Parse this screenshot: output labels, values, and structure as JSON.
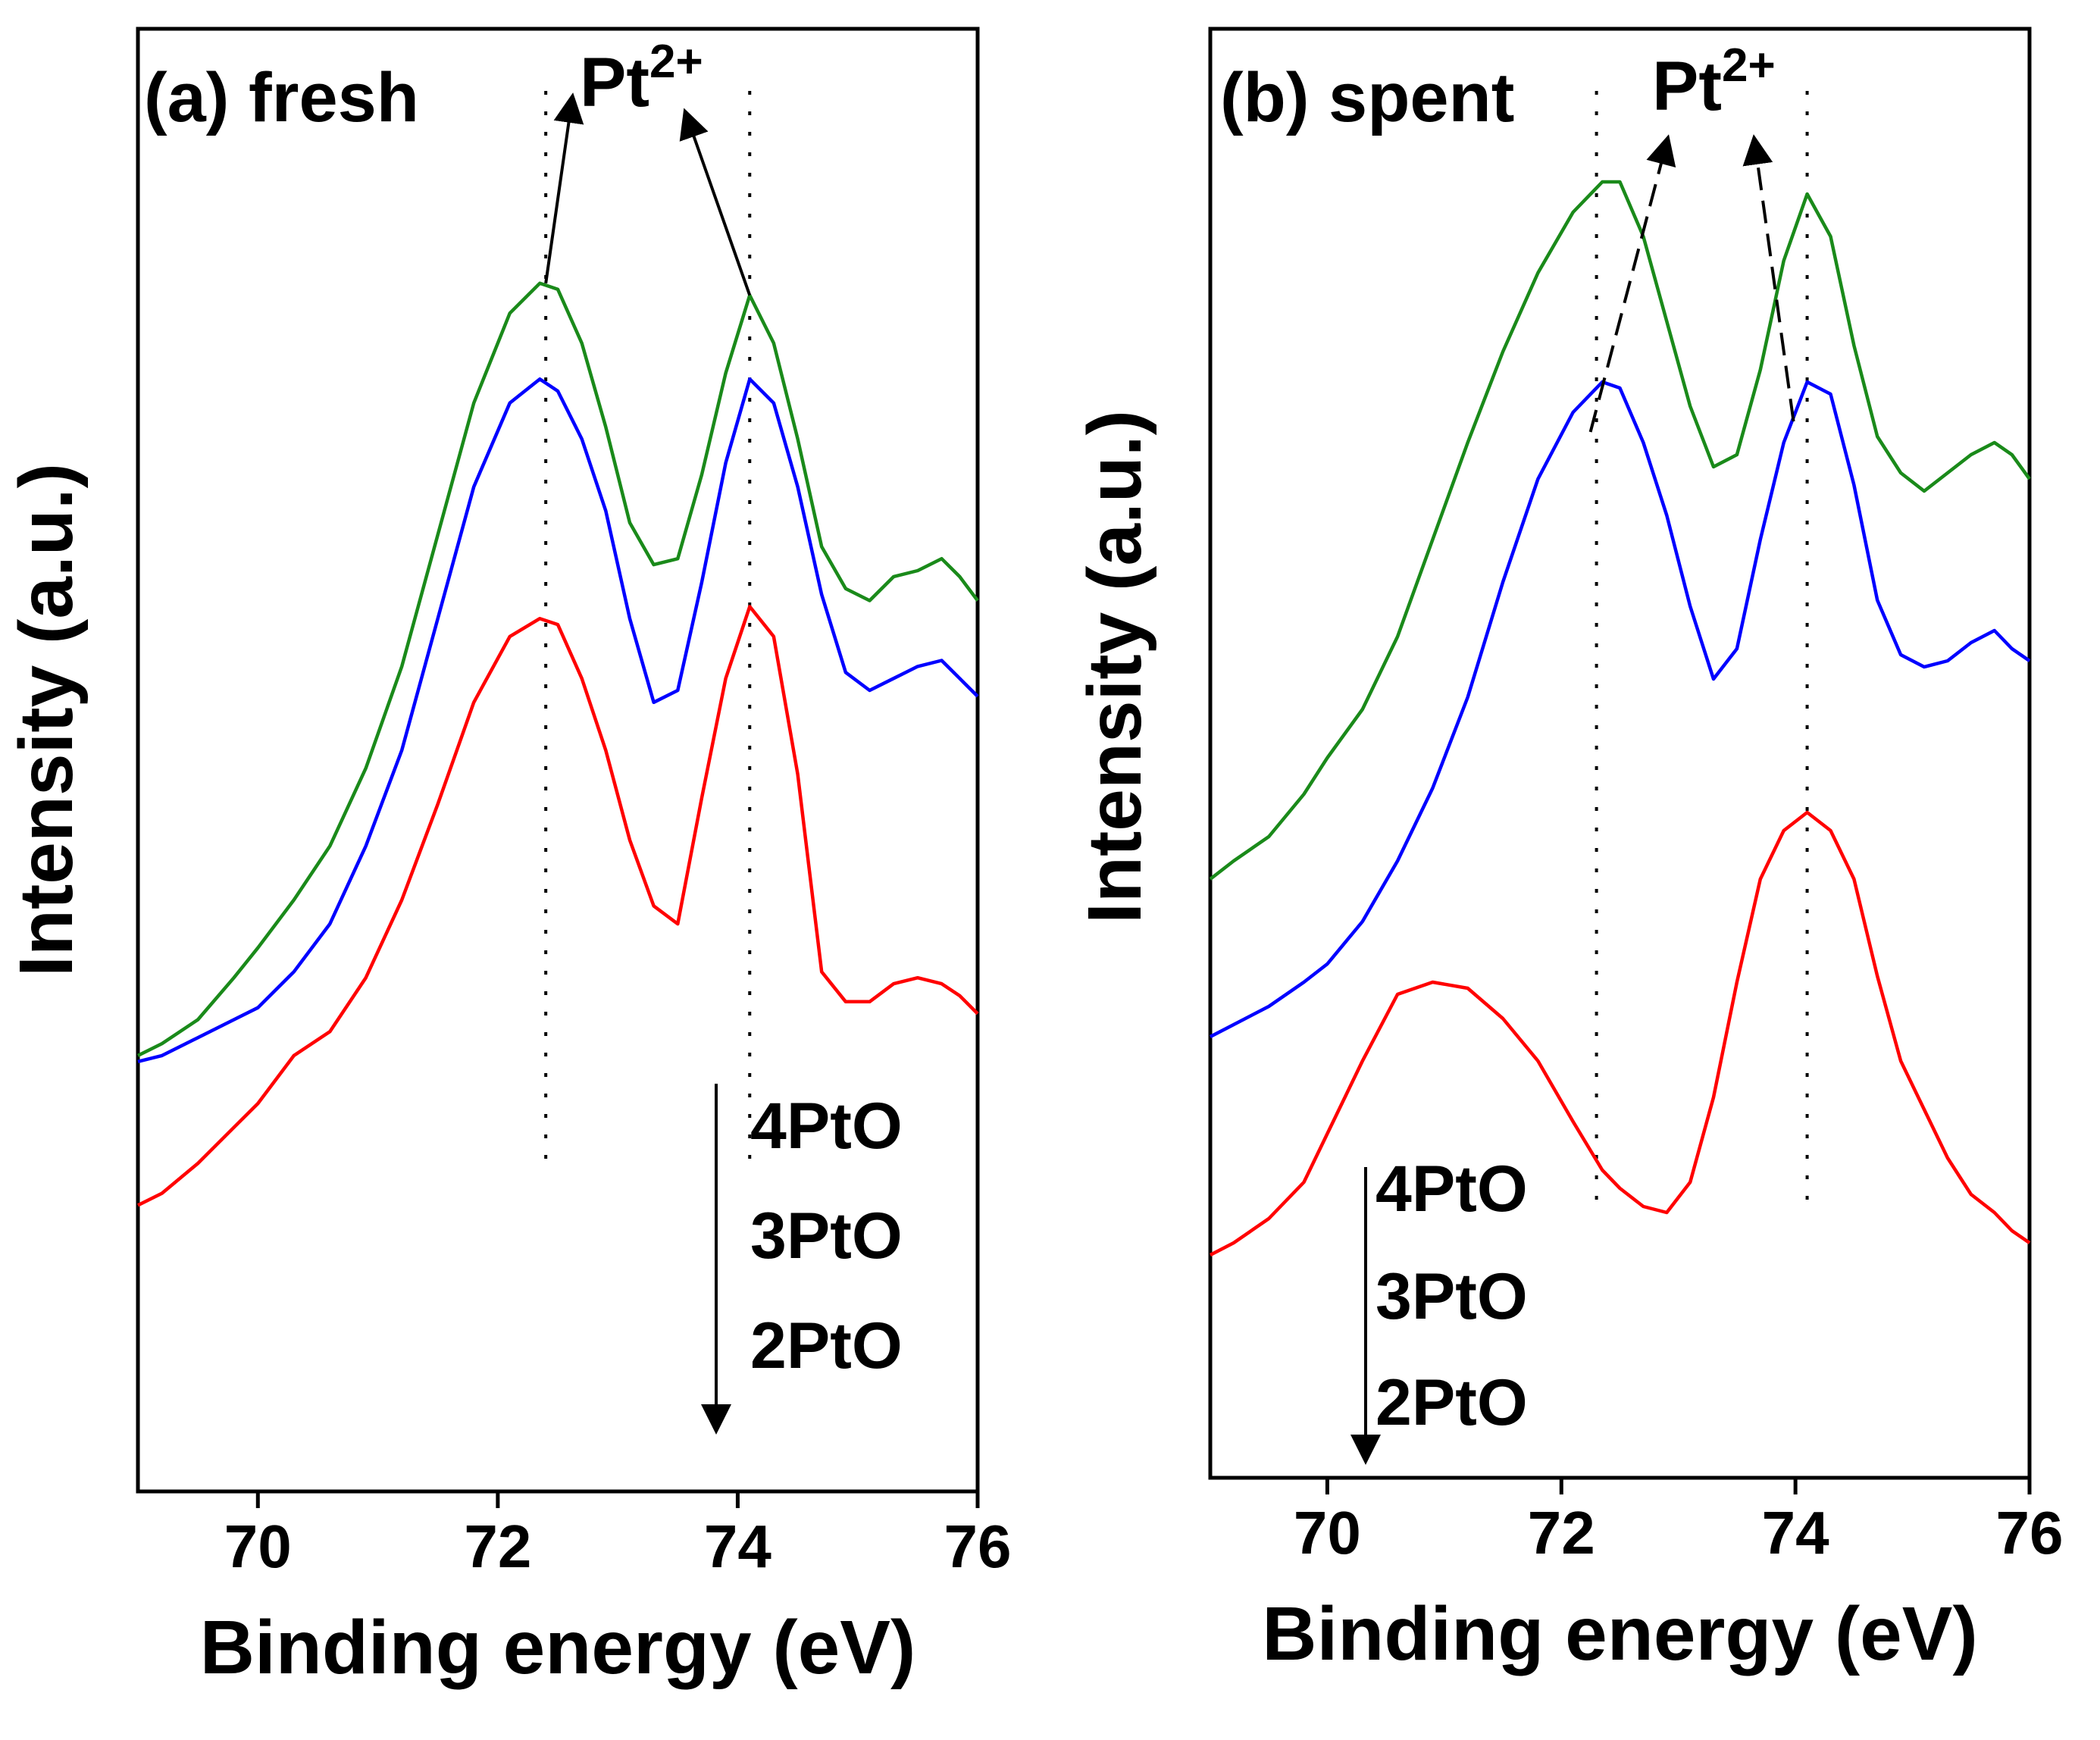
{
  "chart_data": [
    {
      "type": "line",
      "panel_label": "(a) fresh",
      "xlabel": "Binding energy (eV)",
      "ylabel": "Intensity (a.u.)",
      "xlim": [
        69,
        76
      ],
      "ylim": [
        0,
        100
      ],
      "xticks": [
        "70",
        "72",
        "74",
        "76"
      ],
      "x_tick_values": [
        70,
        72,
        74,
        76
      ],
      "y_ticks_shown": false,
      "peak_annotation": {
        "base": "Pt",
        "sup": "2+"
      },
      "peak_positions": [
        72.4,
        74.1
      ],
      "legend": {
        "labels": [
          "4PtO",
          "3PtO",
          "2PtO"
        ],
        "placement": "bottom-right",
        "arrow": "down"
      },
      "x": [
        69.0,
        69.2,
        69.5,
        69.8,
        70.0,
        70.3,
        70.6,
        70.9,
        71.2,
        71.5,
        71.8,
        72.1,
        72.35,
        72.5,
        72.7,
        72.9,
        73.1,
        73.3,
        73.5,
        73.7,
        73.9,
        74.1,
        74.3,
        74.5,
        74.7,
        74.9,
        75.1,
        75.3,
        75.5,
        75.7,
        75.85,
        76.0
      ],
      "series": [
        {
          "name": "4PtO",
          "color": "#1a8a1a",
          "values": [
            24.5,
            25.5,
            27.5,
            31.0,
            33.5,
            37.5,
            42.0,
            48.5,
            57.0,
            68.0,
            79.0,
            86.5,
            89.0,
            88.5,
            84.0,
            77.0,
            69.0,
            65.5,
            66.0,
            73.0,
            81.5,
            88.0,
            84.0,
            76.0,
            67.0,
            63.5,
            62.5,
            64.5,
            65.0,
            66.0,
            64.5,
            62.5
          ]
        },
        {
          "name": "3PtO",
          "color": "#0000ff",
          "values": [
            24.0,
            24.5,
            26.0,
            27.5,
            28.5,
            31.5,
            35.5,
            42.0,
            50.0,
            61.0,
            72.0,
            79.0,
            81.0,
            80.0,
            76.0,
            70.0,
            61.0,
            54.0,
            55.0,
            64.0,
            74.0,
            81.0,
            79.0,
            72.0,
            63.0,
            56.5,
            55.0,
            56.0,
            57.0,
            57.5,
            56.0,
            54.5
          ]
        },
        {
          "name": "2PtO",
          "color": "#ff0000",
          "values": [
            12.0,
            13.0,
            15.5,
            18.5,
            20.5,
            24.5,
            26.5,
            31.0,
            37.5,
            45.5,
            54.0,
            59.5,
            61.0,
            60.5,
            56.0,
            50.0,
            42.5,
            37.0,
            35.5,
            46.0,
            56.0,
            62.0,
            59.5,
            48.0,
            31.5,
            29.0,
            29.0,
            30.5,
            31.0,
            30.5,
            29.5,
            28.0
          ]
        }
      ]
    },
    {
      "type": "line",
      "panel_label": "(b) spent",
      "xlabel": "Binding energy (eV)",
      "ylabel": "Intensity (a.u.)",
      "xlim": [
        69,
        76
      ],
      "ylim": [
        0,
        100
      ],
      "xticks": [
        "70",
        "72",
        "74",
        "76"
      ],
      "x_tick_values": [
        70,
        72,
        74,
        76
      ],
      "y_ticks_shown": false,
      "peak_annotation": {
        "base": "Pt",
        "sup": "2+"
      },
      "peak_positions": [
        72.3,
        74.1
      ],
      "legend": {
        "labels": [
          "4PtO",
          "3PtO",
          "2PtO"
        ],
        "placement": "bottom-left",
        "arrow": "down"
      },
      "x": [
        69.0,
        69.2,
        69.5,
        69.8,
        70.0,
        70.3,
        70.6,
        70.9,
        71.2,
        71.5,
        71.8,
        72.1,
        72.35,
        72.5,
        72.7,
        72.9,
        73.1,
        73.3,
        73.5,
        73.7,
        73.9,
        74.1,
        74.3,
        74.5,
        74.7,
        74.9,
        75.1,
        75.3,
        75.5,
        75.7,
        75.85,
        76.0
      ],
      "series": [
        {
          "name": "4PtO",
          "color": "#1a8a1a",
          "values": [
            40.0,
            41.5,
            43.5,
            47.0,
            50.0,
            54.0,
            60.0,
            68.0,
            76.0,
            83.5,
            90.0,
            95.0,
            97.5,
            97.5,
            93.0,
            86.0,
            79.0,
            74.0,
            75.0,
            82.0,
            91.0,
            96.5,
            93.0,
            84.0,
            76.5,
            73.5,
            72.0,
            73.5,
            75.0,
            76.0,
            75.0,
            73.0
          ]
        },
        {
          "name": "3PtO",
          "color": "#0000ff",
          "values": [
            27.0,
            28.0,
            29.5,
            31.5,
            33.0,
            36.5,
            41.5,
            47.5,
            55.0,
            64.5,
            73.0,
            78.5,
            81.0,
            80.5,
            76.0,
            70.0,
            62.5,
            56.5,
            59.0,
            68.0,
            76.0,
            81.0,
            80.0,
            72.5,
            63.0,
            58.5,
            57.5,
            58.0,
            59.5,
            60.5,
            59.0,
            58.0
          ]
        },
        {
          "name": "2PtO",
          "color": "#ff0000",
          "values": [
            9.0,
            10.0,
            12.0,
            15.0,
            19.0,
            25.0,
            30.5,
            31.5,
            31.0,
            28.5,
            25.0,
            20.0,
            16.0,
            14.5,
            13.0,
            12.5,
            15.0,
            22.0,
            31.5,
            40.0,
            44.0,
            45.5,
            44.0,
            40.0,
            32.0,
            25.0,
            21.0,
            17.0,
            14.0,
            12.5,
            11.0,
            10.0
          ]
        }
      ]
    }
  ]
}
